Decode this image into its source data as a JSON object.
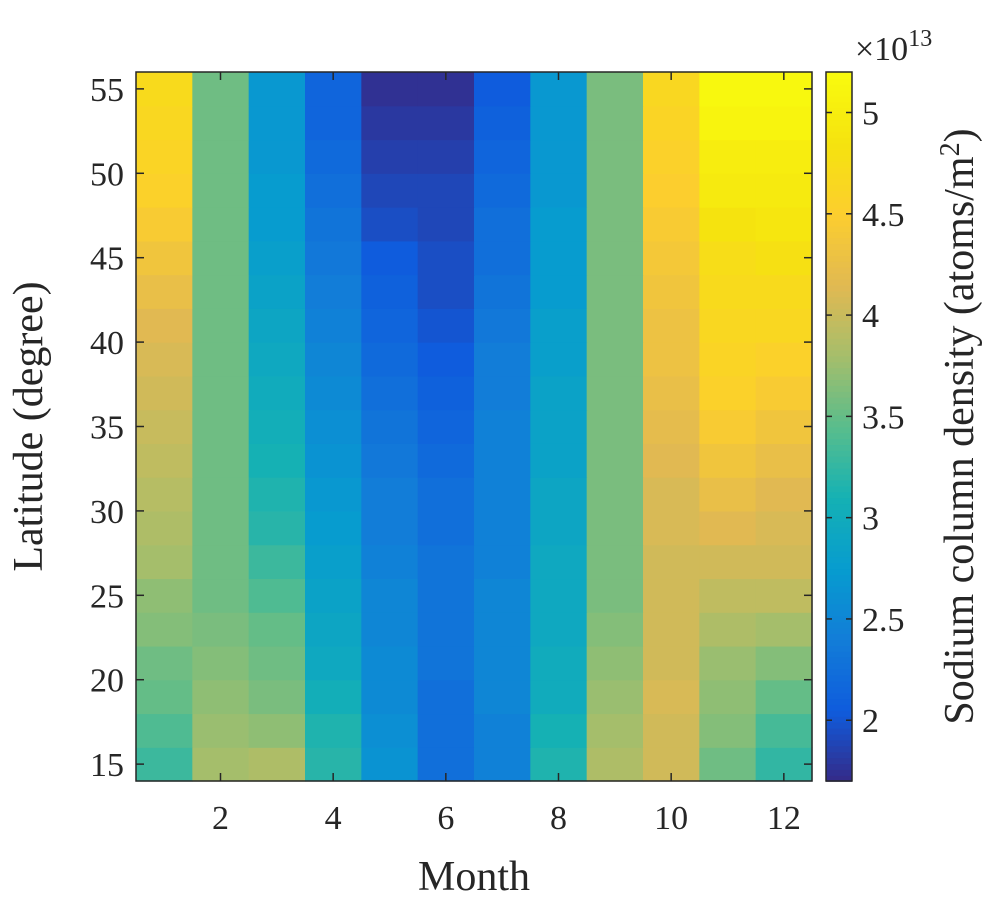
{
  "chart_data": {
    "type": "heatmap",
    "xlabel": "Month",
    "ylabel": "Latitude (degree)",
    "x": [
      1,
      2,
      3,
      4,
      5,
      6,
      7,
      8,
      9,
      10,
      11,
      12
    ],
    "y": [
      15,
      17,
      19,
      21,
      23,
      25,
      27,
      29,
      31,
      33,
      35,
      37,
      39,
      41,
      43,
      45,
      47,
      49,
      51,
      53,
      55
    ],
    "xlim": [
      0.5,
      12.5
    ],
    "ylim": [
      14,
      56
    ],
    "xticks": [
      2,
      4,
      6,
      8,
      10,
      12
    ],
    "yticks": [
      15,
      20,
      25,
      30,
      35,
      40,
      45,
      50,
      55
    ],
    "values": [
      [
        3.3,
        3.8,
        3.85,
        3.2,
        2.65,
        2.25,
        2.45,
        3.15,
        3.85,
        4.05,
        3.55,
        3.25
      ],
      [
        3.4,
        3.75,
        3.7,
        3.15,
        2.6,
        2.25,
        2.45,
        3.1,
        3.8,
        4.05,
        3.65,
        3.35
      ],
      [
        3.5,
        3.7,
        3.6,
        3.05,
        2.55,
        2.25,
        2.5,
        3.0,
        3.75,
        4.1,
        3.7,
        3.5
      ],
      [
        3.55,
        3.65,
        3.55,
        2.95,
        2.55,
        2.3,
        2.5,
        3.0,
        3.7,
        4.05,
        3.75,
        3.65
      ],
      [
        3.65,
        3.6,
        3.5,
        2.9,
        2.5,
        2.3,
        2.5,
        2.95,
        3.65,
        4.05,
        3.85,
        3.8
      ],
      [
        3.7,
        3.55,
        3.4,
        2.85,
        2.5,
        2.3,
        2.5,
        2.95,
        3.6,
        4.05,
        3.95,
        3.95
      ],
      [
        3.8,
        3.55,
        3.3,
        2.8,
        2.45,
        2.3,
        2.45,
        2.95,
        3.6,
        4.05,
        4.05,
        4.05
      ],
      [
        3.85,
        3.55,
        3.2,
        2.75,
        2.4,
        2.25,
        2.45,
        2.9,
        3.6,
        4.1,
        4.15,
        4.1
      ],
      [
        3.9,
        3.55,
        3.15,
        2.7,
        2.4,
        2.25,
        2.45,
        2.9,
        3.6,
        4.1,
        4.25,
        4.15
      ],
      [
        3.95,
        3.55,
        3.1,
        2.65,
        2.35,
        2.2,
        2.45,
        2.85,
        3.6,
        4.15,
        4.35,
        4.25
      ],
      [
        4.0,
        3.55,
        3.05,
        2.6,
        2.3,
        2.15,
        2.45,
        2.85,
        3.6,
        4.2,
        4.45,
        4.35
      ],
      [
        4.05,
        3.55,
        3.0,
        2.55,
        2.25,
        2.1,
        2.4,
        2.85,
        3.6,
        4.25,
        4.55,
        4.45
      ],
      [
        4.1,
        3.55,
        2.95,
        2.5,
        2.2,
        2.05,
        2.4,
        2.8,
        3.6,
        4.3,
        4.6,
        4.55
      ],
      [
        4.15,
        3.55,
        2.9,
        2.45,
        2.15,
        2.0,
        2.35,
        2.8,
        3.6,
        4.3,
        4.65,
        4.65
      ],
      [
        4.25,
        3.55,
        2.85,
        2.4,
        2.1,
        1.95,
        2.3,
        2.75,
        3.6,
        4.35,
        4.7,
        4.7
      ],
      [
        4.35,
        3.55,
        2.8,
        2.35,
        2.05,
        1.95,
        2.25,
        2.75,
        3.6,
        4.4,
        4.75,
        4.8
      ],
      [
        4.45,
        3.55,
        2.75,
        2.3,
        1.95,
        1.9,
        2.25,
        2.75,
        3.6,
        4.45,
        4.85,
        4.9
      ],
      [
        4.55,
        3.55,
        2.75,
        2.25,
        1.9,
        1.9,
        2.2,
        2.7,
        3.6,
        4.5,
        4.95,
        4.95
      ],
      [
        4.6,
        3.55,
        2.7,
        2.2,
        1.85,
        1.85,
        2.15,
        2.7,
        3.6,
        4.55,
        5.0,
        5.0
      ],
      [
        4.65,
        3.55,
        2.7,
        2.15,
        1.8,
        1.8,
        2.1,
        2.7,
        3.6,
        4.6,
        5.1,
        5.1
      ],
      [
        4.7,
        3.55,
        2.7,
        2.15,
        1.75,
        1.75,
        2.05,
        2.7,
        3.6,
        4.65,
        5.15,
        5.15
      ]
    ],
    "colorbar": {
      "label_text": "Sodium column density (atoms/m",
      "label_sup": "2",
      "label_close": ")",
      "exponent_base": "×10",
      "exponent_power": "13",
      "range": [
        1.7,
        5.2
      ],
      "ticks": [
        2,
        2.5,
        3,
        3.5,
        4,
        4.5,
        5
      ],
      "tick_labels": [
        "2",
        "2.5",
        "3",
        "3.5",
        "4",
        "4.5",
        "5"
      ],
      "colormap": "parula"
    },
    "grid": false
  },
  "colors": {
    "axis": "#262626",
    "background": "#ffffff"
  }
}
